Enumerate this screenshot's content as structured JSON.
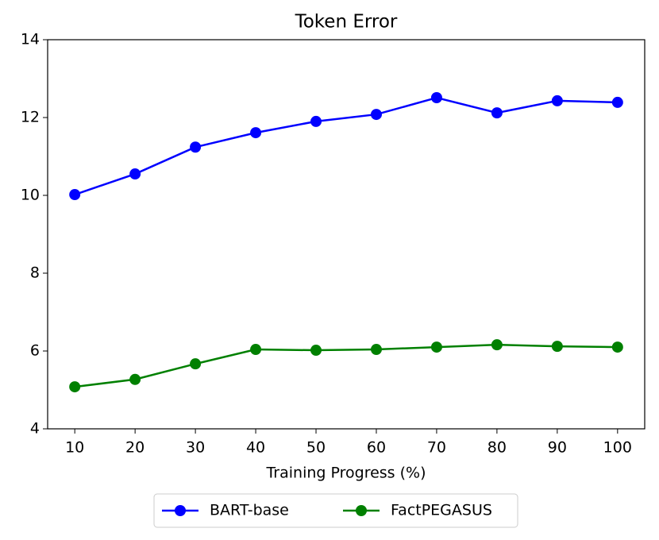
{
  "chart_data": {
    "type": "line",
    "title": "Token Error",
    "x_label": "Training Progress (%)",
    "x": [
      10,
      20,
      30,
      40,
      50,
      60,
      70,
      80,
      90,
      100
    ],
    "series": [
      {
        "name": "BART-base",
        "color": "#0000ff",
        "values": [
          10.02,
          10.55,
          11.24,
          11.61,
          11.9,
          12.08,
          12.51,
          12.12,
          12.43,
          12.39
        ]
      },
      {
        "name": "FactPEGASUS",
        "color": "#008000",
        "values": [
          5.08,
          5.27,
          5.67,
          6.04,
          6.02,
          6.04,
          6.1,
          6.16,
          6.12,
          6.1
        ]
      }
    ],
    "xlim": [
      5.5,
      104.5
    ],
    "xticks": [
      10,
      20,
      30,
      40,
      50,
      60,
      70,
      80,
      90,
      100
    ],
    "ylim": [
      4,
      14
    ],
    "yticks": [
      4,
      6,
      8,
      10,
      12,
      14
    ],
    "grid": false,
    "legend": "below"
  }
}
